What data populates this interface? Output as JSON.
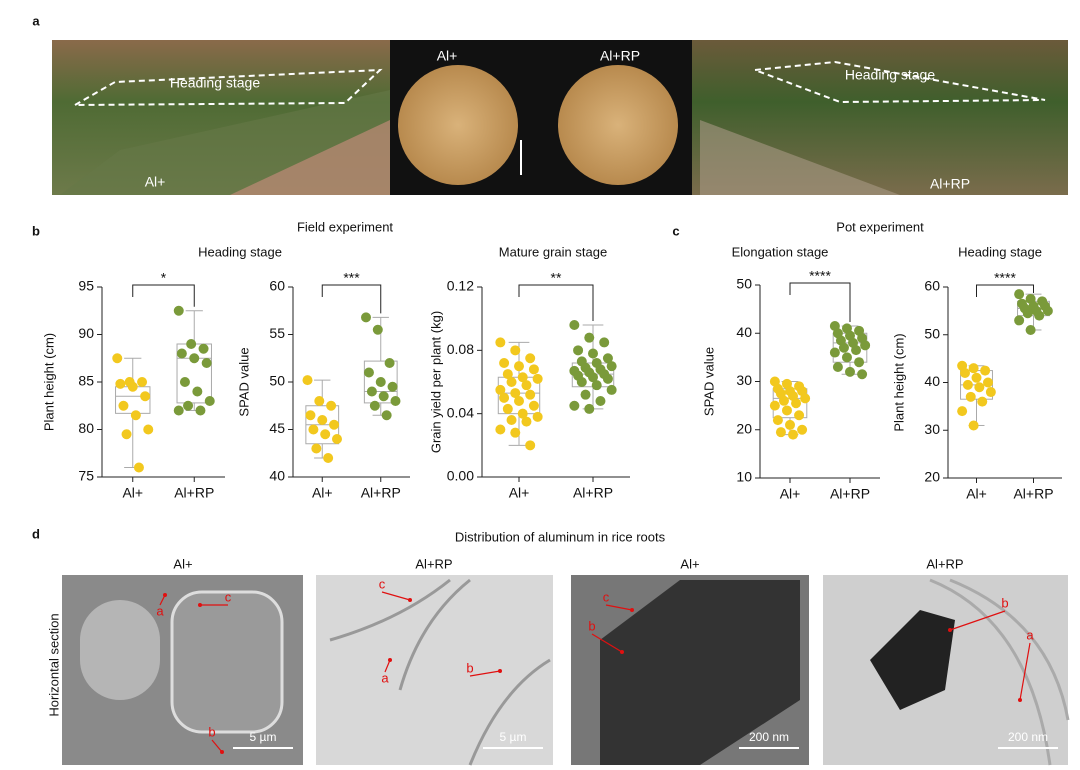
{
  "figure": {
    "panel_labels": [
      "a",
      "b",
      "c",
      "d"
    ],
    "photos": {
      "left_stage": "Heading stage",
      "left_group": "Al+",
      "grain_left": "Al+",
      "grain_right": "Al+RP",
      "right_stage": "Heading stage",
      "right_group": "Al+RP"
    },
    "field_title": "Field experiment",
    "pot_title": "Pot experiment",
    "d_title": "Distribution of aluminum in rice roots",
    "d_ylabel": "Horizontal section",
    "micrographs": [
      {
        "title": "Al+",
        "scale": "5 µm",
        "markers": [
          "a",
          "c",
          "b"
        ]
      },
      {
        "title": "Al+RP",
        "scale": "5 µm",
        "markers": [
          "c",
          "a",
          "b"
        ]
      },
      {
        "title": "Al+",
        "scale": "200 nm",
        "markers": [
          "c",
          "b"
        ]
      },
      {
        "title": "Al+RP",
        "scale": "200 nm",
        "markers": [
          "b",
          "a"
        ]
      }
    ]
  },
  "chart_data": [
    {
      "type": "box",
      "title": "Heading stage",
      "ylabel": "Plant height (cm)",
      "categories": [
        "Al+",
        "Al+RP"
      ],
      "significance": "*",
      "ylim": [
        75,
        95
      ],
      "yticks": [
        75,
        80,
        85,
        90,
        95
      ],
      "groups": [
        {
          "color": "#f2c81e",
          "points": [
            87.5,
            85,
            85,
            84.8,
            84.5,
            83.5,
            82.5,
            81.5,
            80,
            79.5,
            76
          ],
          "box": {
            "min": 76,
            "q1": 81.7,
            "median": 83.5,
            "q3": 84.5,
            "max": 87.5
          }
        },
        {
          "color": "#7a9a3a",
          "points": [
            92.5,
            89,
            88.5,
            88,
            87.5,
            87,
            85,
            84,
            83,
            82.5,
            82,
            82
          ],
          "box": {
            "min": 82,
            "q1": 82.8,
            "median": 87.5,
            "q3": 89,
            "max": 92.5
          }
        }
      ]
    },
    {
      "type": "box",
      "ylabel": "SPAD value",
      "categories": [
        "Al+",
        "Al+RP"
      ],
      "significance": "***",
      "ylim": [
        40,
        60
      ],
      "yticks": [
        40,
        45,
        50,
        55,
        60
      ],
      "groups": [
        {
          "color": "#f2c81e",
          "points": [
            50.2,
            48,
            47.5,
            46.5,
            46,
            45.5,
            45,
            44.5,
            44,
            43,
            42
          ],
          "box": {
            "min": 42,
            "q1": 43.5,
            "median": 45.5,
            "q3": 47.5,
            "max": 50.2
          }
        },
        {
          "color": "#7a9a3a",
          "points": [
            56.8,
            55.5,
            52,
            51,
            50,
            49.5,
            49,
            48.5,
            48,
            47.5,
            46.5
          ],
          "box": {
            "min": 46.5,
            "q1": 47.8,
            "median": 49,
            "q3": 52.2,
            "max": 56.8
          }
        }
      ]
    },
    {
      "type": "box",
      "title": "Mature grain stage",
      "ylabel": "Grain yield per plant (kg)",
      "categories": [
        "Al+",
        "Al+RP"
      ],
      "significance": "**",
      "ylim": [
        0,
        0.12
      ],
      "yticks": [
        {
          "value": 0,
          "label": "0.00"
        },
        {
          "value": 0.04,
          "label": "0.04"
        },
        {
          "value": 0.08,
          "label": "0.08"
        },
        {
          "value": 0.12,
          "label": "0.12"
        }
      ],
      "groups": [
        {
          "color": "#f2c81e",
          "points": [
            0.085,
            0.08,
            0.075,
            0.072,
            0.07,
            0.068,
            0.065,
            0.063,
            0.062,
            0.06,
            0.058,
            0.055,
            0.053,
            0.052,
            0.05,
            0.048,
            0.045,
            0.043,
            0.04,
            0.038,
            0.036,
            0.035,
            0.03,
            0.028,
            0.02
          ],
          "box": {
            "min": 0.02,
            "q1": 0.04,
            "median": 0.053,
            "q3": 0.063,
            "max": 0.085
          }
        },
        {
          "color": "#7a9a3a",
          "points": [
            0.096,
            0.088,
            0.085,
            0.08,
            0.078,
            0.075,
            0.073,
            0.072,
            0.07,
            0.069,
            0.068,
            0.067,
            0.066,
            0.065,
            0.064,
            0.063,
            0.062,
            0.06,
            0.058,
            0.055,
            0.052,
            0.048,
            0.045,
            0.043
          ],
          "box": {
            "min": 0.043,
            "q1": 0.057,
            "median": 0.065,
            "q3": 0.072,
            "max": 0.096
          }
        }
      ]
    },
    {
      "type": "box",
      "title": "Elongation stage",
      "ylabel": "SPAD value",
      "categories": [
        "Al+",
        "Al+RP"
      ],
      "significance": "****",
      "ylim": [
        10,
        50
      ],
      "yticks": [
        10,
        20,
        30,
        40,
        50
      ],
      "groups": [
        {
          "color": "#f2c81e",
          "points": [
            30,
            29.5,
            29,
            28.5,
            28,
            28,
            27.5,
            27,
            26.5,
            26,
            25.5,
            25,
            24,
            23,
            22,
            21,
            20,
            19.5,
            19
          ],
          "box": {
            "min": 19,
            "q1": 22.5,
            "median": 26.5,
            "q3": 28.5,
            "max": 30
          }
        },
        {
          "color": "#7a9a3a",
          "points": [
            41.5,
            41,
            40.5,
            40,
            39.5,
            39,
            38.5,
            38,
            37.5,
            37,
            36.5,
            36,
            35,
            34,
            33,
            32,
            31.5
          ],
          "box": {
            "min": 31.5,
            "q1": 34,
            "median": 38,
            "q3": 40,
            "max": 41.5
          }
        }
      ]
    },
    {
      "type": "box",
      "title": "Heading stage",
      "ylabel": "Plant height (cm)",
      "categories": [
        "Al+",
        "Al+RP"
      ],
      "significance": "****",
      "ylim": [
        20,
        60
      ],
      "yticks": [
        20,
        30,
        40,
        50,
        60
      ],
      "groups": [
        {
          "color": "#f2c81e",
          "points": [
            43.5,
            43,
            42.5,
            42,
            41,
            40,
            39.5,
            39,
            38,
            37,
            36,
            34,
            31
          ],
          "box": {
            "min": 31,
            "q1": 36.5,
            "median": 39.5,
            "q3": 42.5,
            "max": 43.5
          }
        },
        {
          "color": "#7a9a3a",
          "points": [
            58.5,
            57.5,
            57,
            56.5,
            56,
            56,
            55.5,
            55,
            55,
            54.5,
            54,
            53,
            51
          ],
          "box": {
            "min": 51,
            "q1": 54,
            "median": 55.5,
            "q3": 57,
            "max": 58.5
          }
        }
      ]
    }
  ]
}
